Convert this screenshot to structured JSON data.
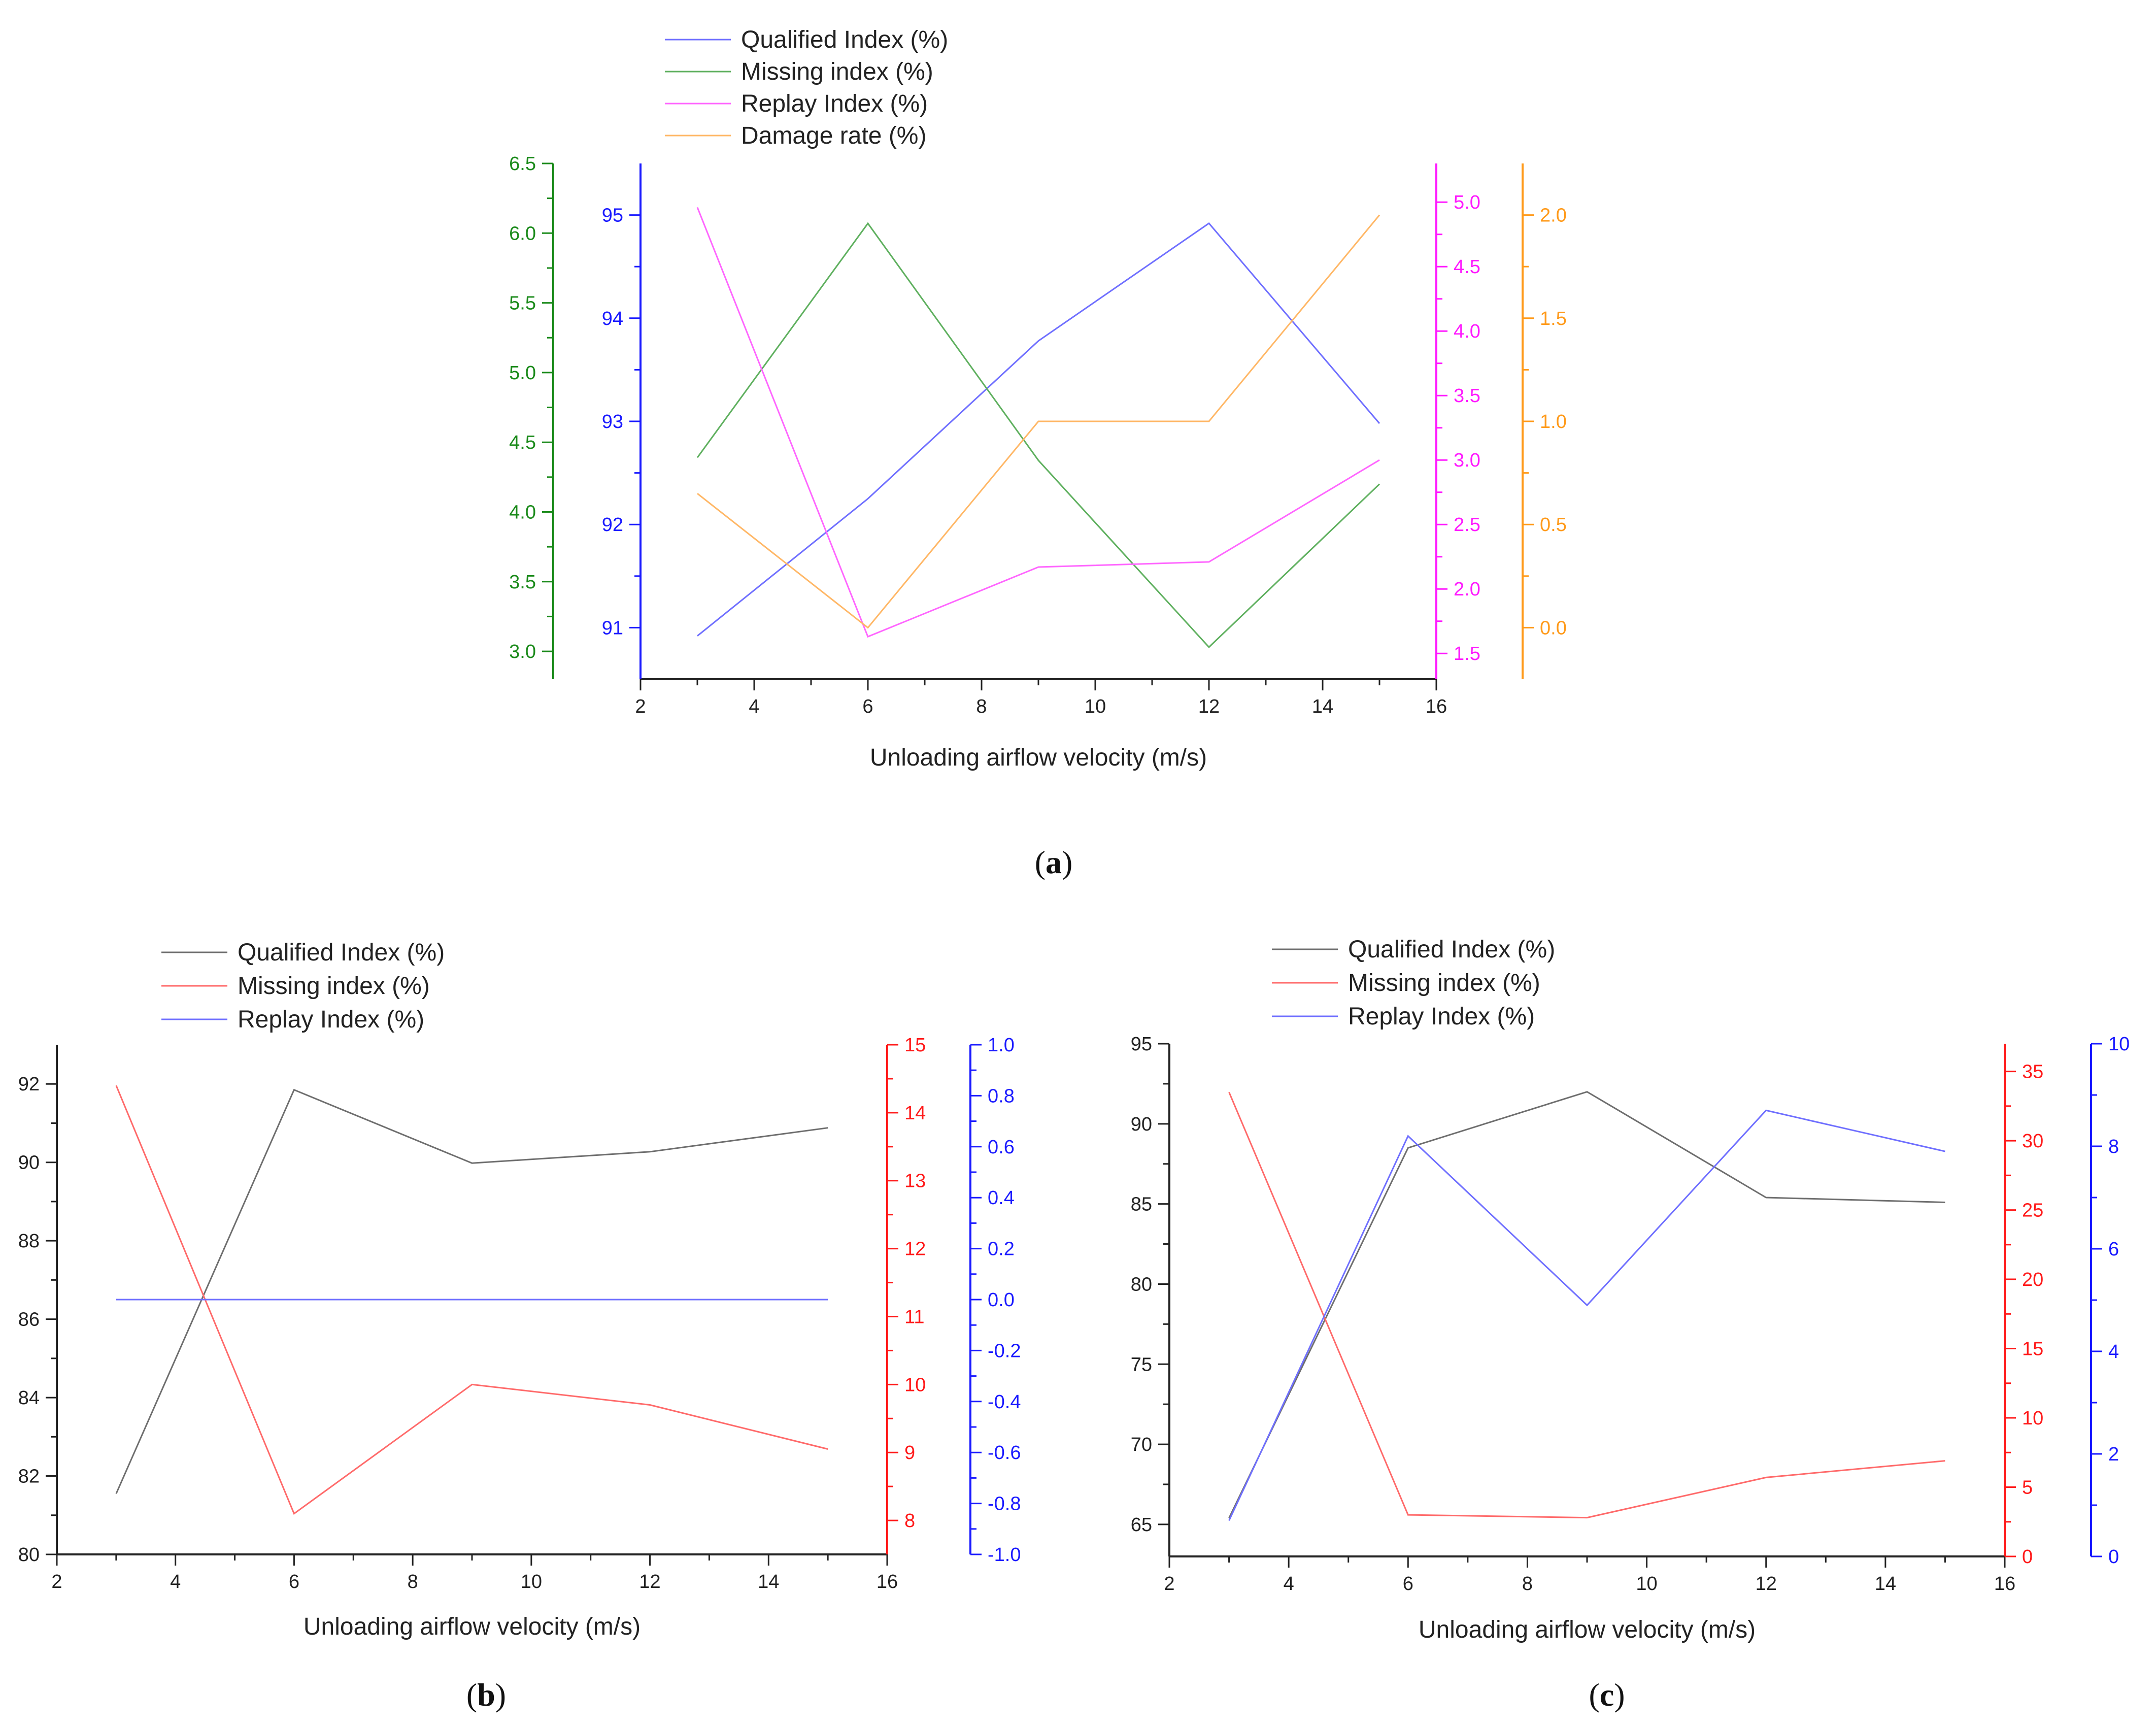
{
  "colors": {
    "blue": "#1a1aff",
    "green": "#1a8a1a",
    "magenta": "#ff1aff",
    "orange": "#ff9a1a",
    "red": "#ff1a1a",
    "gray": "#555555",
    "series_blue": "#6f6fff",
    "series_green": "#5fb05f",
    "series_magenta": "#ff66ff",
    "series_orange": "#ffb766",
    "series_red": "#ff6a6a",
    "series_gray": "#6e6e6e"
  },
  "chart_data": [
    {
      "type": "line",
      "panel": "a",
      "xlabel": "Unloading airflow velocity (m/s)",
      "x": [
        3,
        6,
        9,
        12,
        15
      ],
      "xlim": [
        2,
        16
      ],
      "xticks": [
        2,
        4,
        6,
        8,
        10,
        12,
        14,
        16
      ],
      "legend": "top-center",
      "axes": [
        {
          "id": "green",
          "side": "left",
          "lim": [
            2.8,
            6.5
          ],
          "ticks": [
            "3.0",
            "3.5",
            "4.0",
            "4.5",
            "5.0",
            "5.5",
            "6.0",
            "6.5"
          ]
        },
        {
          "id": "blue",
          "side": "left",
          "lim": [
            90.5,
            95.5
          ],
          "ticks": [
            "91",
            "92",
            "93",
            "94",
            "95"
          ]
        },
        {
          "id": "magenta",
          "side": "right",
          "lim": [
            1.3,
            5.3
          ],
          "ticks": [
            "1.5",
            "2.0",
            "2.5",
            "3.0",
            "3.5",
            "4.0",
            "4.5",
            "5.0"
          ]
        },
        {
          "id": "orange",
          "side": "right",
          "lim": [
            -0.25,
            2.25
          ],
          "ticks": [
            "0.0",
            "0.5",
            "1.0",
            "1.5",
            "2.0"
          ]
        }
      ],
      "series": [
        {
          "name": "Qualified Index (%)",
          "axis": "blue",
          "values": [
            90.92,
            92.25,
            93.78,
            94.92,
            92.98
          ]
        },
        {
          "name": "Missing index (%)",
          "axis": "green",
          "values": [
            4.39,
            6.07,
            4.37,
            3.03,
            4.2
          ]
        },
        {
          "name": "Replay Index (%)",
          "axis": "magenta",
          "values": [
            4.96,
            1.63,
            2.17,
            2.21,
            3.0
          ]
        },
        {
          "name": "Damage rate (%)",
          "axis": "orange",
          "values": [
            0.65,
            0.0,
            1.0,
            1.0,
            2.0
          ]
        }
      ]
    },
    {
      "type": "line",
      "panel": "b",
      "xlabel": "Unloading airflow velocity (m/s)",
      "x": [
        3,
        6,
        9,
        12,
        15
      ],
      "xlim": [
        2,
        16
      ],
      "xticks": [
        2,
        4,
        6,
        8,
        10,
        12,
        14,
        16
      ],
      "legend": "top-center",
      "axes": [
        {
          "id": "gray",
          "side": "left",
          "lim": [
            80,
            93
          ],
          "ticks": [
            "80",
            "82",
            "84",
            "86",
            "88",
            "90",
            "92"
          ]
        },
        {
          "id": "red",
          "side": "right",
          "lim": [
            7.5,
            15
          ],
          "ticks": [
            "8",
            "9",
            "10",
            "11",
            "12",
            "13",
            "14",
            "15"
          ]
        },
        {
          "id": "blue",
          "side": "right",
          "lim": [
            -1.0,
            1.0
          ],
          "ticks": [
            "-1.0",
            "-0.8",
            "-0.6",
            "-0.4",
            "-0.2",
            "0.0",
            "0.2",
            "0.4",
            "0.6",
            "0.8",
            "1.0"
          ]
        }
      ],
      "series": [
        {
          "name": "Qualified Index (%)",
          "axis": "gray",
          "values": [
            81.55,
            91.85,
            89.98,
            90.27,
            90.88
          ]
        },
        {
          "name": "Missing index (%)",
          "axis": "red",
          "values": [
            14.4,
            8.1,
            10.0,
            9.7,
            9.05
          ]
        },
        {
          "name": "Replay Index (%)",
          "axis": "blue",
          "values": [
            0.0,
            0.0,
            0.0,
            0.0,
            0.0
          ]
        }
      ]
    },
    {
      "type": "line",
      "panel": "c",
      "xlabel": "Unloading airflow velocity (m/s)",
      "x": [
        3,
        6,
        9,
        12,
        15
      ],
      "xlim": [
        2,
        16
      ],
      "xticks": [
        2,
        4,
        6,
        8,
        10,
        12,
        14,
        16
      ],
      "legend": "top-center",
      "axes": [
        {
          "id": "gray",
          "side": "left",
          "lim": [
            63,
            95
          ],
          "ticks": [
            "65",
            "70",
            "75",
            "80",
            "85",
            "90",
            "95"
          ]
        },
        {
          "id": "red",
          "side": "right",
          "lim": [
            0,
            37
          ],
          "ticks": [
            "0",
            "5",
            "10",
            "15",
            "20",
            "25",
            "30",
            "35"
          ]
        },
        {
          "id": "blue",
          "side": "right",
          "lim": [
            0,
            10
          ],
          "ticks": [
            "0",
            "2",
            "4",
            "6",
            "8",
            "10"
          ]
        }
      ],
      "series": [
        {
          "name": "Qualified Index (%)",
          "axis": "gray",
          "values": [
            65.4,
            88.5,
            92.0,
            85.4,
            85.1
          ]
        },
        {
          "name": "Missing index (%)",
          "axis": "red",
          "values": [
            33.5,
            3.0,
            2.8,
            5.7,
            6.9
          ]
        },
        {
          "name": "Replay Index (%)",
          "axis": "blue",
          "values": [
            0.7,
            8.2,
            4.9,
            8.7,
            7.9
          ]
        }
      ]
    }
  ],
  "panel_labels": {
    "a": "a",
    "b": "b",
    "c": "c"
  },
  "paren_open": "(",
  "paren_close": ")"
}
